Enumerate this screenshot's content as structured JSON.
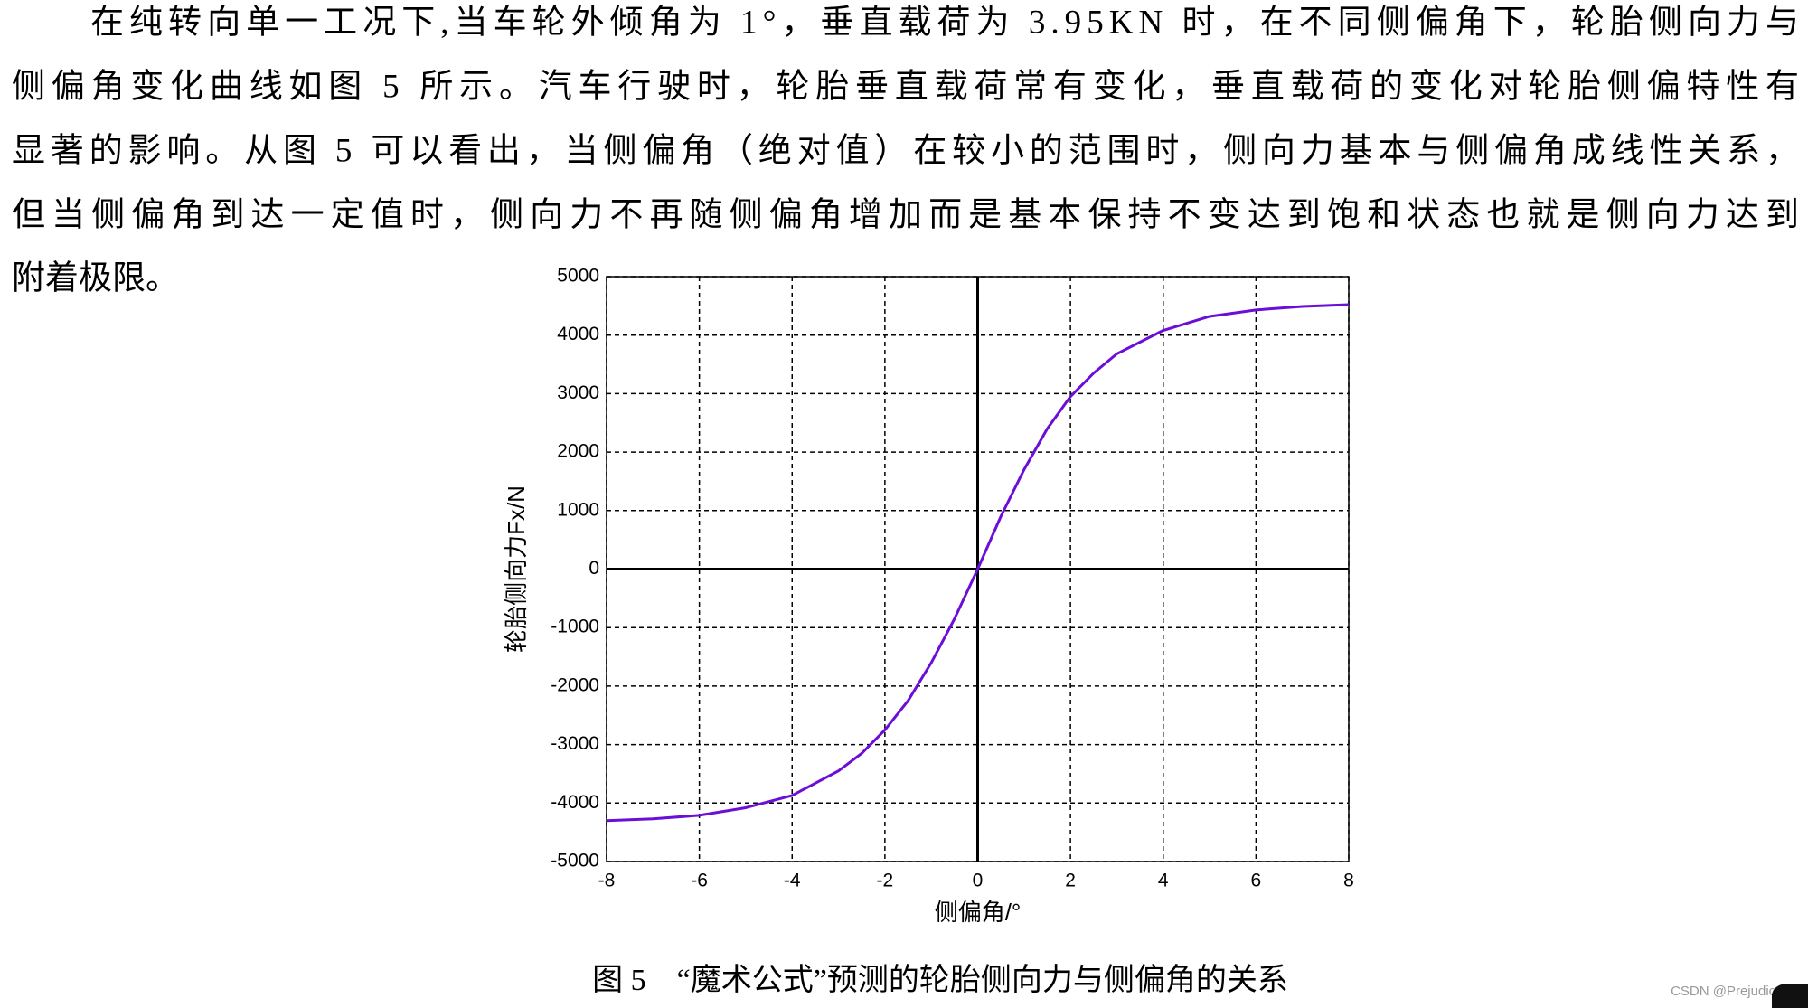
{
  "paragraph": {
    "lines": [
      "在纯转向单一工况下,当车轮外倾角为 1°，垂直载荷为 3.95KN 时，在不同侧偏角下，轮胎侧向力与",
      "侧偏角变化曲线如图 5 所示。汽车行驶时，轮胎垂直载荷常有变化，垂直载荷的变化对轮胎侧偏特性有",
      "显著的影响。从图 5 可以看出，当侧偏角（绝对值）在较小的范围时，侧向力基本与侧偏角成线性关系，",
      "但当侧偏角到达一定值时，侧向力不再随侧偏角增加而是基本保持不变达到饱和状态也就是侧向力达到",
      "附着极限。"
    ]
  },
  "chart_data": {
    "type": "line",
    "x_label": "侧偏角/°",
    "y_label": "轮胎侧向力Fx/N",
    "x": [
      -8,
      -7,
      -6,
      -5,
      -4,
      -3,
      -2.5,
      -2,
      -1.5,
      -1,
      -0.5,
      0,
      0.5,
      1,
      1.5,
      2,
      2.5,
      3,
      4,
      5,
      6,
      7,
      8
    ],
    "series": [
      {
        "color": "#6b0fd8",
        "values": [
          -4300,
          -4270,
          -4210,
          -4080,
          -3870,
          -3450,
          -3150,
          -2750,
          -2250,
          -1600,
          -850,
          0,
          900,
          1700,
          2400,
          2950,
          3350,
          3680,
          4080,
          4320,
          4430,
          4490,
          4520
        ]
      }
    ],
    "xlim": [
      -8,
      8
    ],
    "xticks": [
      -8,
      -6,
      -4,
      -2,
      0,
      2,
      4,
      6,
      8
    ],
    "ylim": [
      -5000,
      5000
    ],
    "yticks": [
      -5000,
      -4000,
      -3000,
      -2000,
      -1000,
      0,
      1000,
      2000,
      3000,
      4000,
      5000
    ],
    "grid": true
  },
  "caption": "图 5　“魔术公式”预测的轮胎侧向力与侧偏角的关系",
  "watermark": "CSDN @Prejudices"
}
